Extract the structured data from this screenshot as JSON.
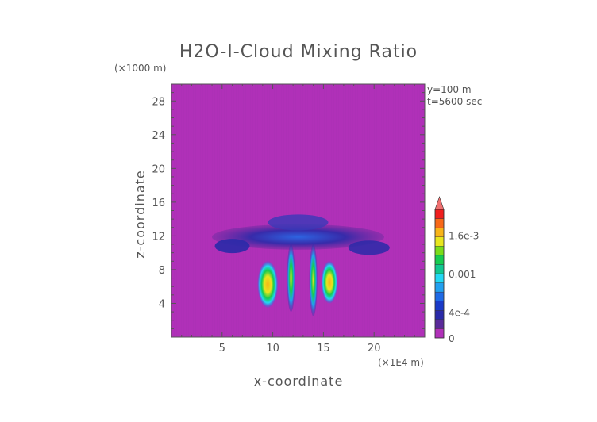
{
  "chart_data": {
    "type": "heatmap",
    "title": "H2O-I-Cloud Mixing Ratio",
    "xlabel": "x-coordinate",
    "ylabel": "z-coordinate",
    "x_unit": "(×1E4 m)",
    "y_unit": "(×1000 m)",
    "annotations": [
      "y=100 m",
      "t=5600 sec"
    ],
    "xlim": [
      0,
      25
    ],
    "ylim": [
      0,
      30
    ],
    "x_ticks": [
      5,
      10,
      15,
      20
    ],
    "y_ticks": [
      4,
      8,
      12,
      16,
      20,
      24,
      28
    ],
    "background_color": "#b030b8",
    "colorbar": {
      "min": 0,
      "max": 0.002,
      "tick_labels": [
        "0",
        "4e-4",
        "0.001",
        "1.6e-3"
      ],
      "tick_values": [
        0,
        0.0004,
        0.001,
        0.0016
      ],
      "colors": [
        "#b030b8",
        "#5a2a9a",
        "#2a2aa8",
        "#1a3ac8",
        "#1f6ae6",
        "#22a0f0",
        "#22d8f4",
        "#10c890",
        "#16cc50",
        "#7adc1a",
        "#e8e61e",
        "#f8b418",
        "#f86818",
        "#f01e1e"
      ],
      "extend_color": "#f07070"
    },
    "features": [
      {
        "name": "anvil",
        "x": [
          4,
          21
        ],
        "z": [
          9.5,
          15
        ],
        "value": 0.0003
      },
      {
        "name": "left-core",
        "x": [
          8.5,
          10.5
        ],
        "z": [
          3.5,
          9
        ],
        "value": 0.0012
      },
      {
        "name": "center-left-shaft",
        "x": [
          11.4,
          12.2
        ],
        "z": [
          3,
          11
        ],
        "value": 0.0008
      },
      {
        "name": "center-right-shaft",
        "x": [
          13.6,
          14.4
        ],
        "z": [
          2.5,
          11
        ],
        "value": 0.0009
      },
      {
        "name": "right-core",
        "x": [
          14.8,
          16.4
        ],
        "z": [
          4,
          9
        ],
        "value": 0.0012
      }
    ]
  }
}
